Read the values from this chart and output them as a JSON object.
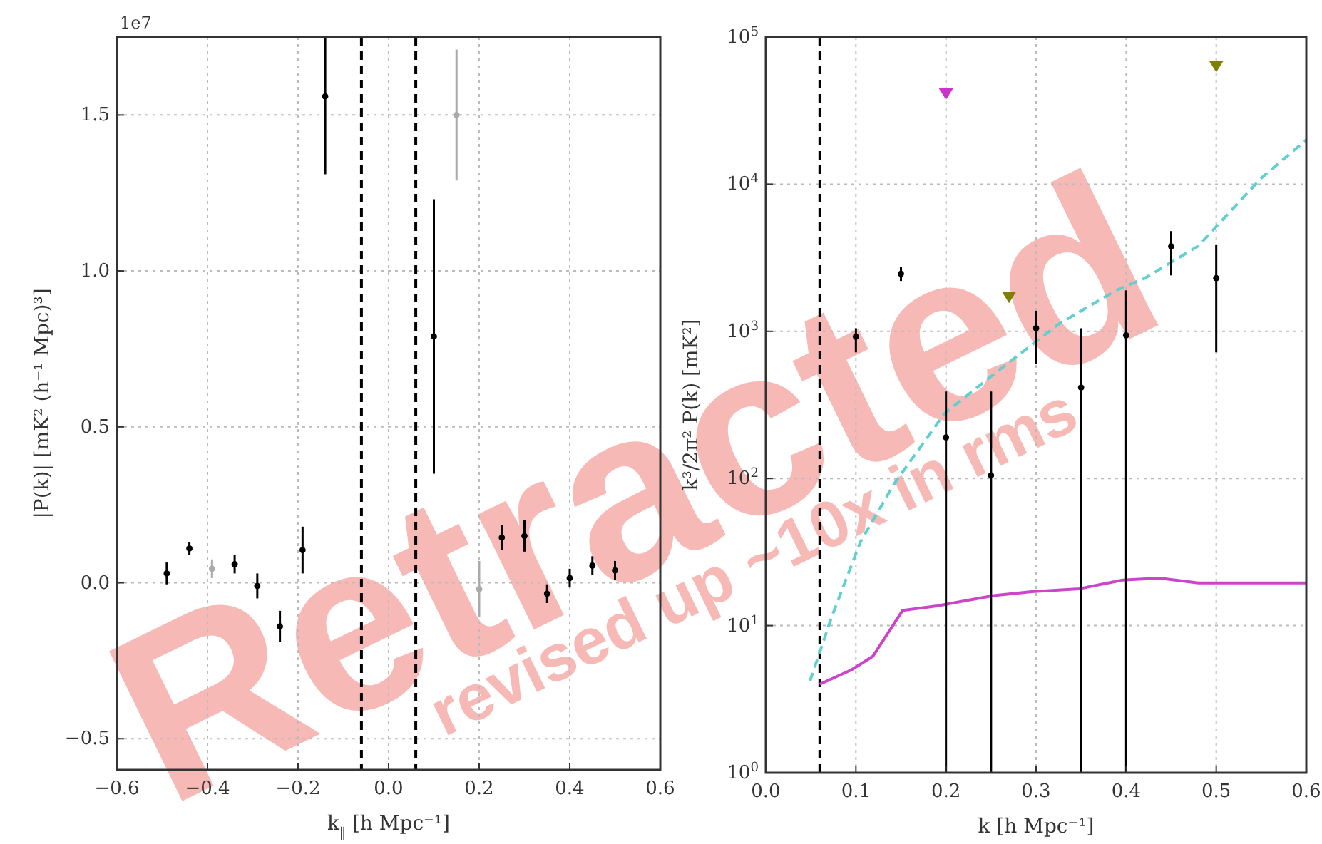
{
  "chart_data": [
    {
      "type": "scatter",
      "xlabel": "k$_{∥}$ [h Mpc⁻¹]",
      "ylabel": "|P(k)| [mK² (h⁻¹ Mpc)³]",
      "annotations": [
        "1e7",
        "Retracted",
        "revised up ~10x in rms"
      ],
      "xlim": [
        -0.6,
        0.6
      ],
      "xticks": [
        {
          "value": -0.6,
          "label": "−0.6"
        },
        {
          "value": -0.4,
          "label": "−0.4"
        },
        {
          "value": -0.2,
          "label": "−0.2"
        },
        {
          "value": 0,
          "label": "0.0"
        },
        0.2,
        0.4,
        0.6
      ],
      "ylim": [
        -0.6,
        1.75
      ],
      "yticks": [
        {
          "value": -0.5,
          "label": "−0.5"
        },
        {
          "value": 0,
          "label": "0.0"
        },
        0.5,
        {
          "value": 1,
          "label": "1.0"
        },
        1.5
      ],
      "grid": true,
      "marker": "circle",
      "ref_lines": [
        {
          "axis": "x",
          "value": -0.06,
          "color": "#000000",
          "line_style": "dashed"
        },
        {
          "axis": "x",
          "value": 0.06,
          "color": "#000000",
          "line_style": "dashed"
        }
      ],
      "series": [
        {
          "color": "#000000",
          "x": [
            -0.49,
            -0.44,
            -0.34,
            -0.29,
            -0.24,
            -0.19,
            -0.14,
            0.1,
            0.25,
            0.3,
            0.35,
            0.4,
            0.45,
            0.5
          ],
          "values": [
            0.03,
            0.11,
            0.06,
            -0.01,
            -0.14,
            0.105,
            1.56,
            0.79,
            0.145,
            0.15,
            -0.035,
            0.015,
            0.055,
            0.04
          ],
          "errors": [
            0.035,
            0.02,
            0.03,
            0.04,
            0.05,
            0.075,
            [
              1.31,
              1.75
            ],
            0.44,
            0.04,
            0.05,
            0.03,
            0.03,
            0.03,
            0.03
          ]
        },
        {
          "color": "#aaaaaa",
          "x": [
            -0.39,
            0.15,
            0.2
          ],
          "values": [
            0.045,
            1.5,
            -0.02
          ],
          "errors": [
            0.03,
            0.21,
            0.09
          ]
        }
      ]
    },
    {
      "type": "scatter",
      "xlabel": "k [h Mpc⁻¹]",
      "ylabel": "k³/2π² P(k) [mK²]",
      "xlim": [
        0,
        0.6
      ],
      "xticks": [
        {
          "value": 0,
          "label": "0.0"
        },
        0.1,
        0.2,
        0.3,
        0.4,
        0.5,
        0.6
      ],
      "ylim": [
        1,
        100000
      ],
      "log": "y",
      "yticks": [
        {
          "value": 1,
          "label": "10$^{0}$"
        },
        {
          "value": 10,
          "label": "10$^{1}$"
        },
        {
          "value": 100,
          "label": "10$^{2}$"
        },
        {
          "value": 1000,
          "label": "10$^{3}$"
        },
        {
          "value": 10000,
          "label": "10$^{4}$"
        },
        {
          "value": 100000,
          "label": "10$^{5}$"
        }
      ],
      "grid": true,
      "marker": "circle",
      "ref_lines": [
        {
          "axis": "x",
          "value": 0.06,
          "color": "#000000",
          "line_style": "dashed"
        }
      ],
      "series": [
        {
          "type": "line",
          "color": "#5fd0d0",
          "line_style": "dashed",
          "marker": "none",
          "x": [
            0.049,
            0.073,
            0.105,
            0.142,
            0.198,
            0.258,
            0.326,
            0.389,
            0.421,
            0.48,
            0.55,
            0.6
          ],
          "values": [
            4.2,
            11.4,
            37,
            91,
            275,
            540,
            1130,
            1900,
            2300,
            3800,
            11000,
            20000
          ]
        },
        {
          "type": "line",
          "color": "#cc44cc",
          "line_style": "solid",
          "marker": "none",
          "x": [
            0.06,
            0.095,
            0.119,
            0.152,
            0.19,
            0.253,
            0.295,
            0.348,
            0.396,
            0.437,
            0.48,
            0.6
          ],
          "values": [
            4,
            5,
            6.2,
            12.7,
            13.6,
            16,
            17,
            17.8,
            20.4,
            21,
            19.5,
            19.5
          ]
        },
        {
          "color": "#000000",
          "x": [
            0.1,
            0.15,
            0.2,
            0.25,
            0.3,
            0.35,
            0.4,
            0.45,
            0.5
          ],
          "values": [
            920,
            2460,
            190,
            105,
            1050,
            415,
            940,
            3780,
            2300
          ],
          "errors": [
            [
              720,
              1050
            ],
            [
              2200,
              2750
            ],
            [
              1,
              390
            ],
            [
              1,
              390
            ],
            [
              600,
              1380
            ],
            [
              1,
              1050
            ],
            [
              1,
              1900
            ],
            [
              2400,
              4800
            ],
            [
              720,
              3870
            ]
          ]
        },
        {
          "color": "#cc33cc",
          "marker": "triangle",
          "x": [
            0.2
          ],
          "values": [
            41000
          ]
        },
        {
          "color": "#808000",
          "marker": "triangle",
          "x": [
            0.27,
            0.5
          ],
          "values": [
            1700,
            63000
          ]
        }
      ]
    }
  ]
}
